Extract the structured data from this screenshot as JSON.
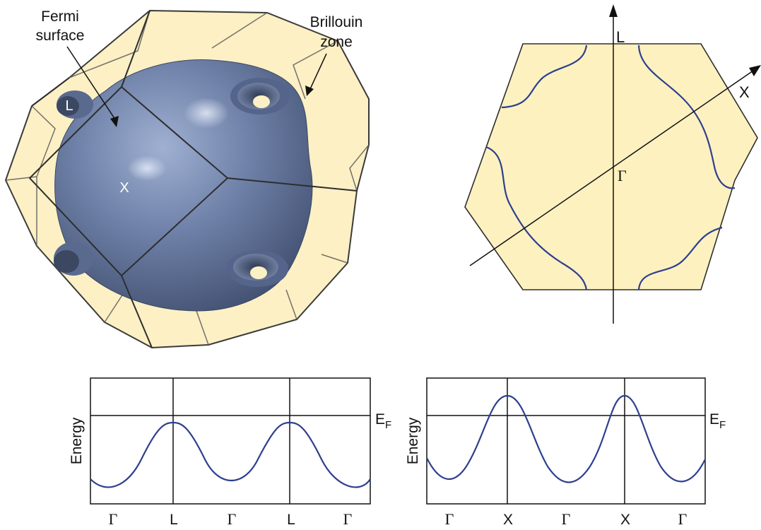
{
  "bz3d": {
    "fermi_label_1": "Fermi",
    "fermi_label_2": "surface",
    "bz_label_1": "Brillouin",
    "bz_label_2": "zone",
    "point_L": "L",
    "point_X": "X"
  },
  "section2d": {
    "axis_L": "L",
    "axis_X": "X",
    "gamma": "Γ"
  },
  "band_plots": {
    "ylabel": "Energy",
    "fermi_level": "E",
    "fermi_sub": "F",
    "left_ticks": [
      "Γ",
      "L",
      "Γ",
      "L",
      "Γ"
    ],
    "right_ticks": [
      "Γ",
      "X",
      "Γ",
      "X",
      "Γ"
    ]
  },
  "colors": {
    "zone_fill": "#fdf0c4",
    "zone_edge": "#3a3a3a",
    "fermi_fill": "#6d7fa6",
    "curve": "#2e3f8f",
    "hex_fill": "#fdf1c0"
  }
}
